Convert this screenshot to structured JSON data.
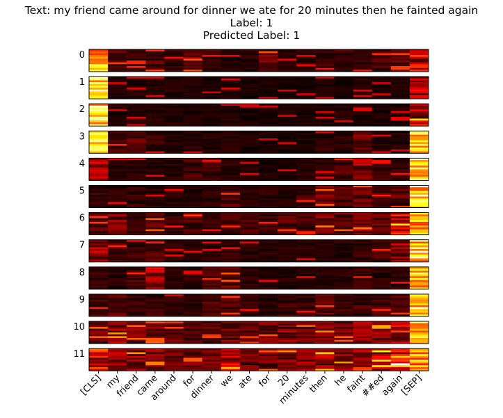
{
  "title": {
    "text_line": "Text: my friend came around for dinner we ate for 20 minutes then he fainted again",
    "label_line": "Label: 1",
    "pred_line": "Predicted Label: 1"
  },
  "chart_data": {
    "type": "heatmap",
    "colormap": "hot",
    "x_tokens": [
      "[CLS]",
      "my",
      "friend",
      "came",
      "around",
      "for",
      "dinner",
      "we",
      "ate",
      "for",
      "20",
      "minutes",
      "then",
      "he",
      "faint",
      "##ed",
      "again",
      "[SEP]"
    ],
    "layers": [
      "0",
      "1",
      "2",
      "3",
      "4",
      "5",
      "6",
      "7",
      "8",
      "9",
      "10",
      "11"
    ],
    "heads_per_layer": 12,
    "column_mean_intensity": [
      [
        0.75,
        0.12,
        0.1,
        0.12,
        0.08,
        0.14,
        0.08,
        0.06,
        0.06,
        0.14,
        0.05,
        0.06,
        0.08,
        0.1,
        0.08,
        0.1,
        0.12,
        0.3
      ],
      [
        0.85,
        0.05,
        0.05,
        0.05,
        0.05,
        0.05,
        0.04,
        0.05,
        0.04,
        0.04,
        0.04,
        0.04,
        0.04,
        0.04,
        0.05,
        0.04,
        0.05,
        0.25
      ],
      [
        0.85,
        0.05,
        0.05,
        0.05,
        0.05,
        0.05,
        0.04,
        0.05,
        0.04,
        0.04,
        0.04,
        0.04,
        0.04,
        0.05,
        0.05,
        0.04,
        0.05,
        0.28
      ],
      [
        0.8,
        0.1,
        0.12,
        0.08,
        0.05,
        0.06,
        0.05,
        0.05,
        0.04,
        0.04,
        0.04,
        0.04,
        0.06,
        0.06,
        0.15,
        0.06,
        0.05,
        0.75
      ],
      [
        0.25,
        0.06,
        0.06,
        0.06,
        0.06,
        0.1,
        0.08,
        0.06,
        0.05,
        0.05,
        0.06,
        0.06,
        0.06,
        0.1,
        0.2,
        0.08,
        0.08,
        0.9
      ],
      [
        0.08,
        0.06,
        0.08,
        0.06,
        0.06,
        0.06,
        0.06,
        0.12,
        0.06,
        0.06,
        0.06,
        0.1,
        0.15,
        0.12,
        0.15,
        0.1,
        0.12,
        0.85
      ],
      [
        0.12,
        0.2,
        0.08,
        0.15,
        0.08,
        0.12,
        0.08,
        0.1,
        0.1,
        0.1,
        0.12,
        0.1,
        0.18,
        0.15,
        0.18,
        0.15,
        0.3,
        0.75
      ],
      [
        0.2,
        0.1,
        0.08,
        0.1,
        0.06,
        0.06,
        0.06,
        0.08,
        0.06,
        0.06,
        0.06,
        0.06,
        0.06,
        0.06,
        0.08,
        0.1,
        0.2,
        0.85
      ],
      [
        0.08,
        0.06,
        0.1,
        0.25,
        0.06,
        0.06,
        0.1,
        0.15,
        0.06,
        0.06,
        0.06,
        0.06,
        0.06,
        0.06,
        0.08,
        0.06,
        0.08,
        0.85
      ],
      [
        0.1,
        0.12,
        0.08,
        0.08,
        0.06,
        0.06,
        0.1,
        0.12,
        0.08,
        0.06,
        0.08,
        0.08,
        0.12,
        0.08,
        0.1,
        0.1,
        0.12,
        0.85
      ],
      [
        0.15,
        0.2,
        0.15,
        0.15,
        0.12,
        0.12,
        0.12,
        0.15,
        0.12,
        0.15,
        0.18,
        0.15,
        0.18,
        0.15,
        0.2,
        0.22,
        0.3,
        0.8
      ],
      [
        0.35,
        0.25,
        0.2,
        0.18,
        0.15,
        0.15,
        0.15,
        0.25,
        0.15,
        0.15,
        0.2,
        0.2,
        0.25,
        0.2,
        0.3,
        0.3,
        0.45,
        0.7
      ]
    ]
  }
}
